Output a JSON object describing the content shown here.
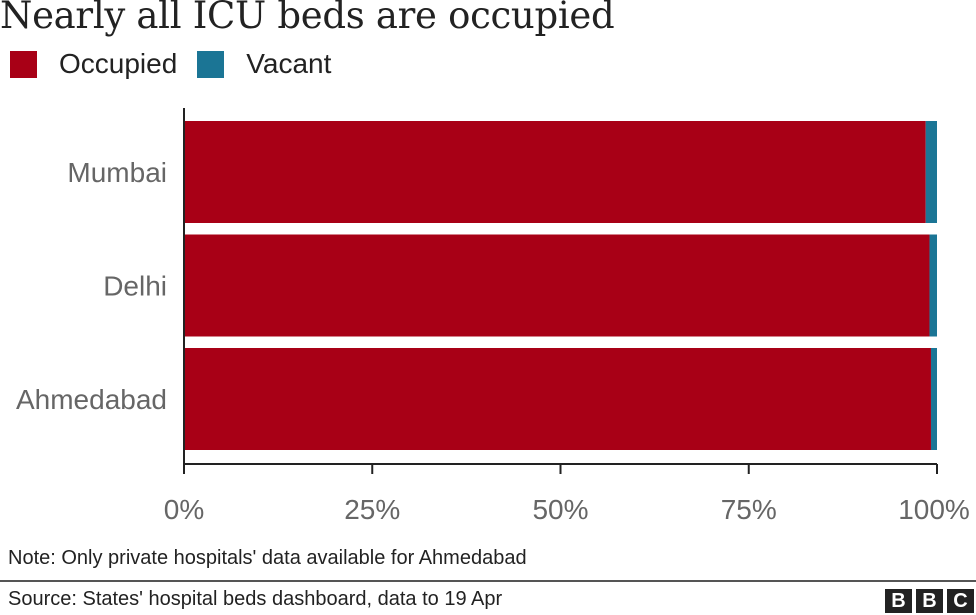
{
  "chart_data": {
    "type": "bar",
    "orientation": "horizontal",
    "stacked": true,
    "title": "Nearly all ICU beds are occupied",
    "categories": [
      "Mumbai",
      "Delhi",
      "Ahmedabad"
    ],
    "series": [
      {
        "name": "Occupied",
        "color": "#a80016",
        "values": [
          98.5,
          99.0,
          99.2
        ]
      },
      {
        "name": "Vacant",
        "color": "#1b7595",
        "values": [
          1.5,
          1.0,
          0.8
        ]
      }
    ],
    "xticks": [
      "0%",
      "25%",
      "50%",
      "75%",
      "100%"
    ],
    "xlim": [
      0,
      100
    ],
    "grid": false,
    "legend_position": "top-left"
  },
  "note": "Note: Only private hospitals' data available for Ahmedabad",
  "source": "Source: States' hospital beds dashboard, data to 19 Apr",
  "logo": {
    "letters": [
      "B",
      "B",
      "C"
    ]
  }
}
